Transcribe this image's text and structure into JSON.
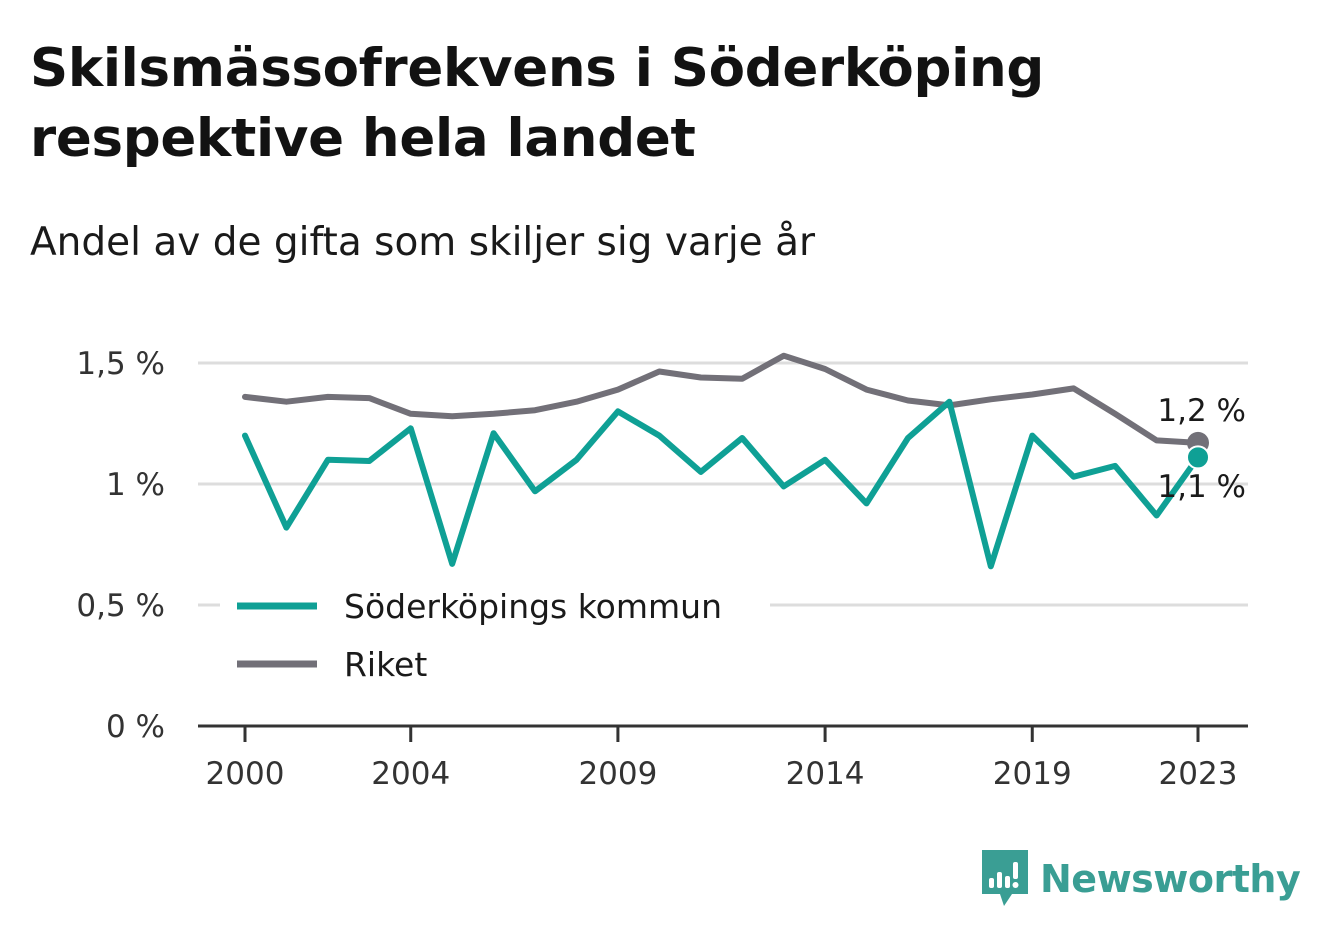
{
  "title": "Skilsmässofrekvens i Söderköping respektive hela landet",
  "subtitle": "Andel av de gifta som skiljer sig varje år",
  "brand": "Newsworthy",
  "colors": {
    "teal": "#0fa095",
    "gray": "#727078",
    "grid": "#dddddd",
    "axis": "#333333"
  },
  "chart_data": {
    "type": "line",
    "title": "Skilsmässofrekvens i Söderköping respektive hela landet",
    "subtitle": "Andel av de gifta som skiljer sig varje år",
    "xlabel": "",
    "ylabel": "",
    "x": [
      2000,
      2001,
      2002,
      2003,
      2004,
      2005,
      2006,
      2007,
      2008,
      2009,
      2010,
      2011,
      2012,
      2013,
      2014,
      2015,
      2016,
      2017,
      2018,
      2019,
      2020,
      2021,
      2022,
      2023
    ],
    "x_ticks": [
      2000,
      2004,
      2009,
      2014,
      2019,
      2023
    ],
    "x_tick_labels": [
      "2000",
      "2004",
      "2009",
      "2014",
      "2019",
      "2023"
    ],
    "ylim": [
      0,
      1.5
    ],
    "y_ticks": [
      0,
      0.5,
      1,
      1.5
    ],
    "y_tick_labels": [
      "0 %",
      "0,5 %",
      "1 %",
      "1,5 %"
    ],
    "grid": true,
    "legend_position": "bottom-left",
    "series": [
      {
        "name": "Söderköpings kommun",
        "color": "#0fa095",
        "values": [
          1.2,
          0.82,
          1.1,
          1.095,
          1.23,
          0.67,
          1.21,
          0.97,
          1.1,
          1.3,
          1.2,
          1.05,
          1.19,
          0.99,
          1.1,
          0.92,
          1.19,
          1.34,
          0.66,
          1.2,
          1.03,
          1.075,
          0.87,
          1.11
        ],
        "end_label": "1,1 %"
      },
      {
        "name": "Riket",
        "color": "#727078",
        "values": [
          1.36,
          1.34,
          1.36,
          1.355,
          1.29,
          1.28,
          1.29,
          1.305,
          1.34,
          1.39,
          1.465,
          1.44,
          1.435,
          1.53,
          1.475,
          1.39,
          1.345,
          1.325,
          1.35,
          1.37,
          1.395,
          1.29,
          1.18,
          1.17
        ],
        "end_label": "1,2 %"
      }
    ]
  }
}
